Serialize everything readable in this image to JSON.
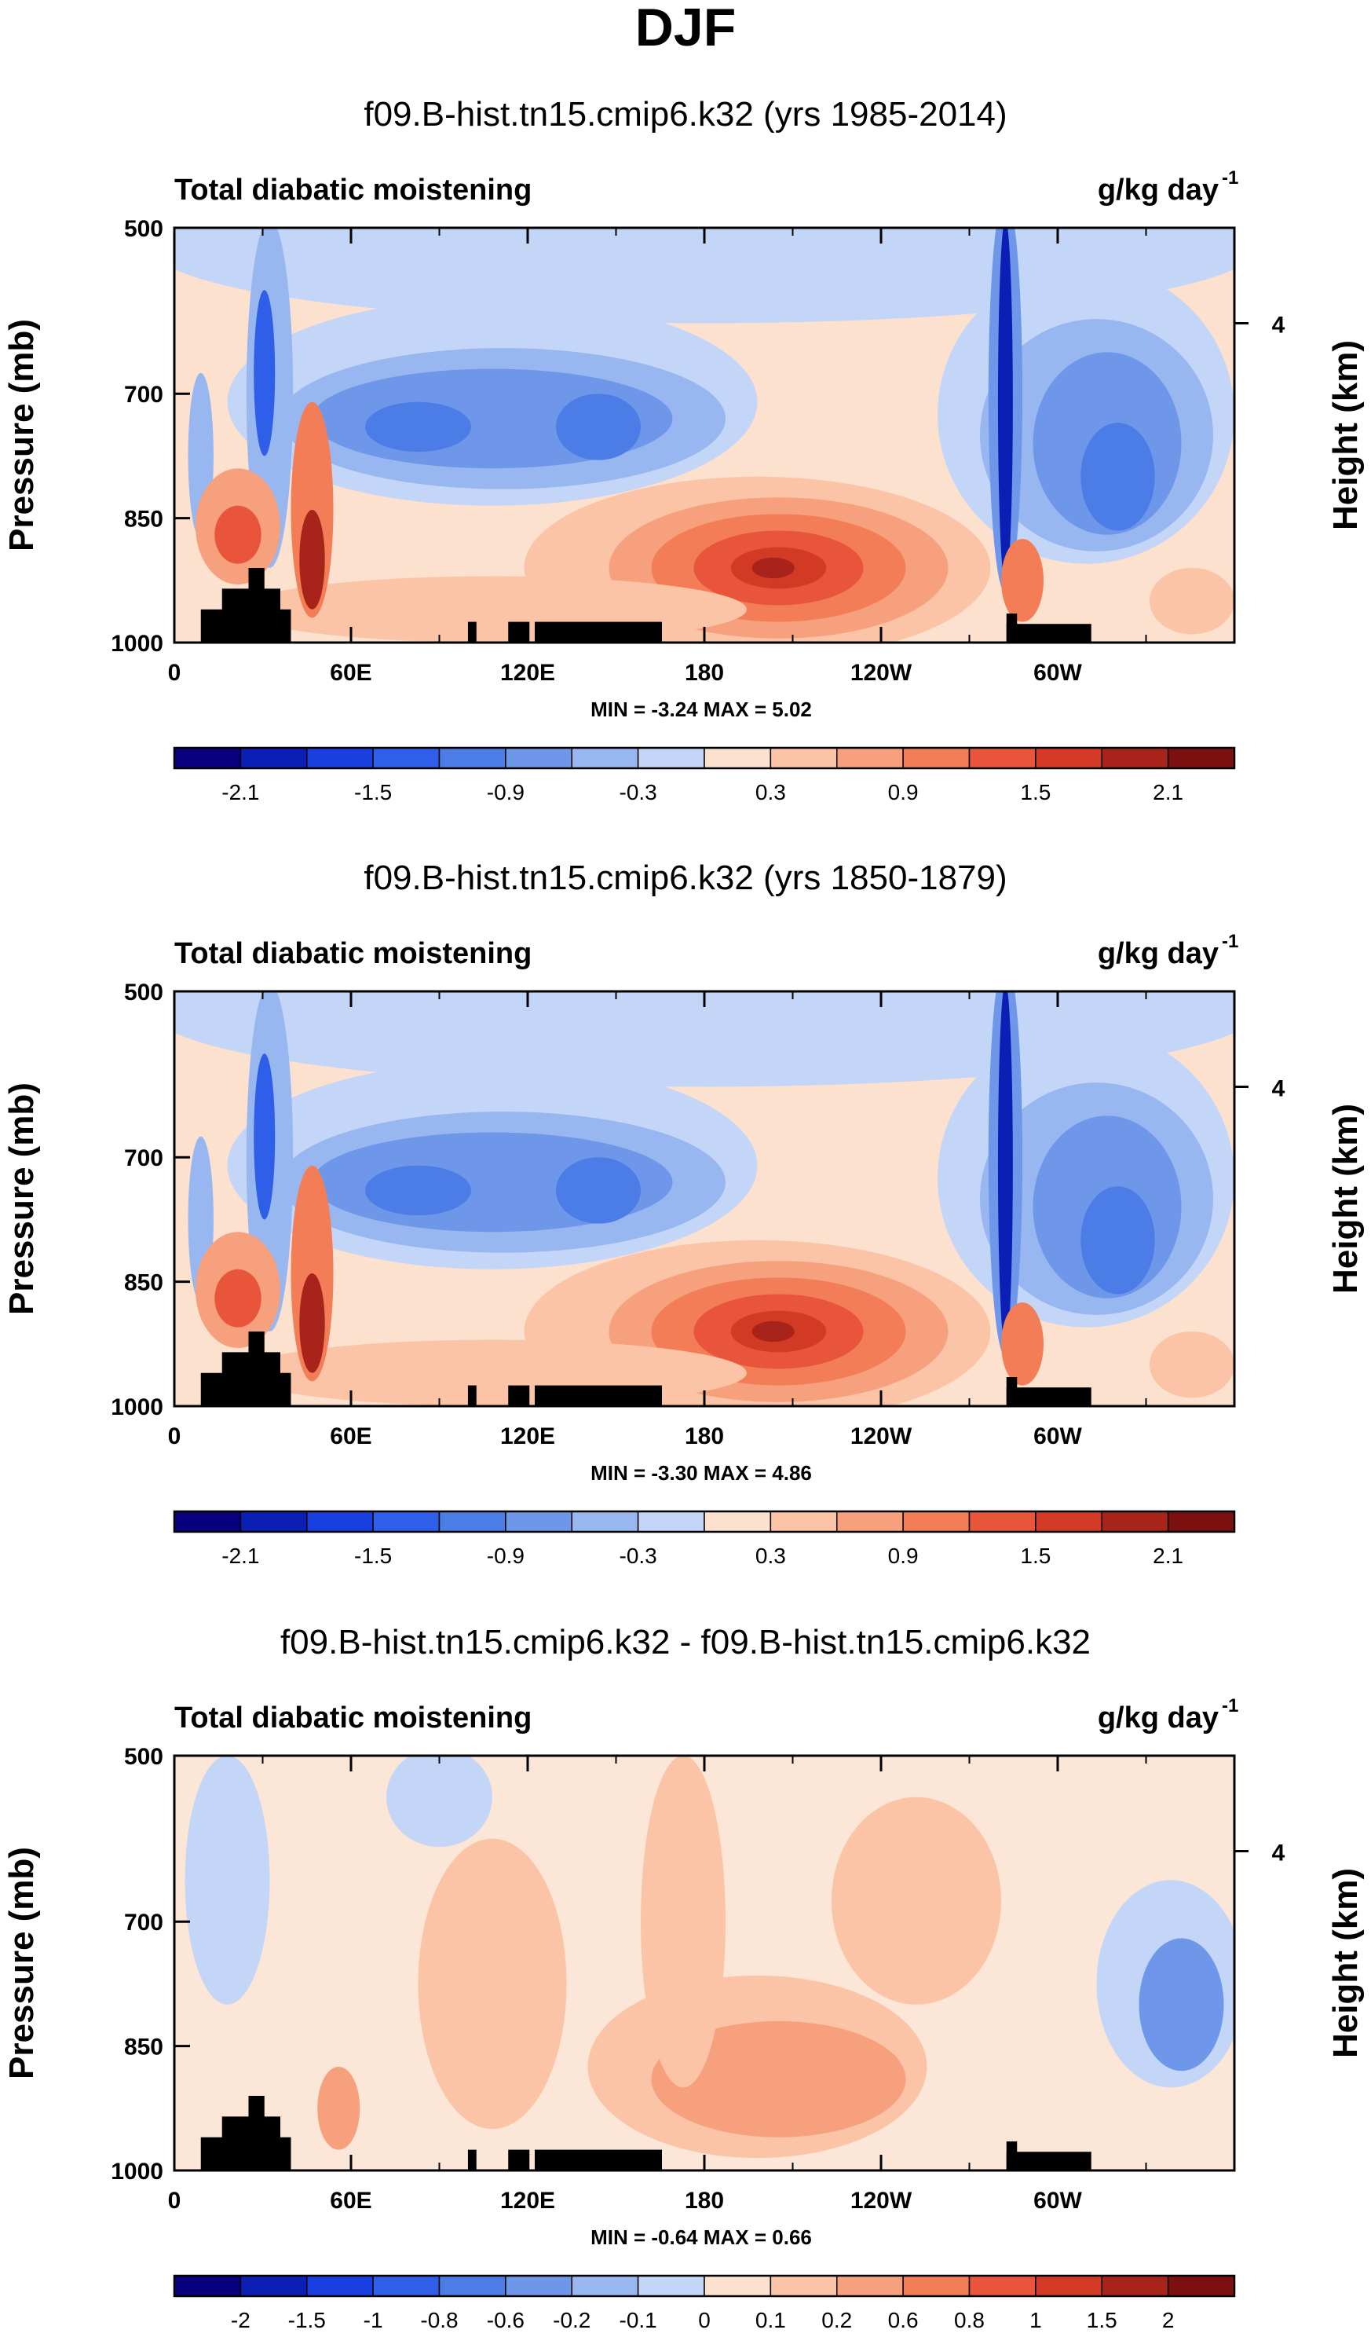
{
  "figure_title": "DJF",
  "chart_data": [
    {
      "type": "heatmap",
      "subtitle": "f09.B-hist.tn15.cmip6.k32 (yrs 1985-2014)",
      "left_string": "Total diabatic moistening",
      "units_base": "g/kg day",
      "units_exp": "-1",
      "ylabel": "Pressure (mb)",
      "right_label": "Height (km)",
      "right_ticks": [
        "4"
      ],
      "y_ticks": [
        "500",
        "700",
        "850",
        "1000"
      ],
      "x_ticks": [
        "0",
        "60E",
        "120E",
        "180",
        "120W",
        "60W"
      ],
      "stats_text": "MIN =  -3.24   MAX =   5.02",
      "min": -3.24,
      "max": 5.02,
      "colorbar_labels": [
        "-2.1",
        "-1.5",
        "-0.9",
        "-0.3",
        "0.3",
        "0.9",
        "1.5",
        "2.1"
      ]
    },
    {
      "type": "heatmap",
      "subtitle": "f09.B-hist.tn15.cmip6.k32 (yrs 1850-1879)",
      "left_string": "Total diabatic moistening",
      "units_base": "g/kg day",
      "units_exp": "-1",
      "ylabel": "Pressure (mb)",
      "right_label": "Height (km)",
      "right_ticks": [
        "4"
      ],
      "y_ticks": [
        "500",
        "700",
        "850",
        "1000"
      ],
      "x_ticks": [
        "0",
        "60E",
        "120E",
        "180",
        "120W",
        "60W"
      ],
      "stats_text": "MIN =  -3.30   MAX =   4.86",
      "min": -3.3,
      "max": 4.86,
      "colorbar_labels": [
        "-2.1",
        "-1.5",
        "-0.9",
        "-0.3",
        "0.3",
        "0.9",
        "1.5",
        "2.1"
      ]
    },
    {
      "type": "heatmap",
      "subtitle": "f09.B-hist.tn15.cmip6.k32 - f09.B-hist.tn15.cmip6.k32",
      "left_string": "Total diabatic moistening",
      "units_base": "g/kg day",
      "units_exp": "-1",
      "ylabel": "Pressure (mb)",
      "right_label": "Height (km)",
      "right_ticks": [
        "4"
      ],
      "y_ticks": [
        "500",
        "700",
        "850",
        "1000"
      ],
      "x_ticks": [
        "0",
        "60E",
        "120E",
        "180",
        "120W",
        "60W"
      ],
      "stats_text": "MIN =  -0.64   MAX =   0.66",
      "min": -0.64,
      "max": 0.66,
      "colorbar_labels": [
        "-2",
        "-1.5",
        "-1",
        "-0.8",
        "-0.6",
        "-0.2",
        "-0.1",
        "0",
        "0.1",
        "0.2",
        "0.6",
        "0.8",
        "1",
        "1.5",
        "2"
      ]
    }
  ],
  "colors": {
    "colorbar_16": [
      "#08007f",
      "#0c1fb5",
      "#1a3fe0",
      "#2f5fe8",
      "#4c7de6",
      "#6e97ea",
      "#98b6f0",
      "#c3d6f7",
      "#fde1cf",
      "#fbc4a6",
      "#f7a07d",
      "#f27d56",
      "#e8553a",
      "#d23a25",
      "#a8231a",
      "#7c1010"
    ],
    "colorbar_diff": [
      "#08007f",
      "#0c1fb5",
      "#1a3fe0",
      "#2f5fe8",
      "#4c7de6",
      "#6e97ea",
      "#98b6f0",
      "#c3d6f7",
      "#fde1cf",
      "#fbc4a6",
      "#f7a07d",
      "#f27d56",
      "#e8553a",
      "#d23a25",
      "#a8231a",
      "#7c1010"
    ],
    "background_field": "#fde1cf",
    "terrain": "#000000"
  }
}
